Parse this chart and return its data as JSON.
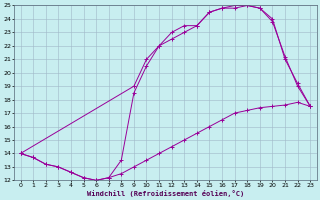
{
  "xlabel": "Windchill (Refroidissement éolien,°C)",
  "background_color": "#c8eef0",
  "grid_color": "#a0b8c8",
  "line_color": "#990099",
  "xlim": [
    -0.5,
    23.5
  ],
  "ylim": [
    12,
    25
  ],
  "xticks": [
    0,
    1,
    2,
    3,
    4,
    5,
    6,
    7,
    8,
    9,
    10,
    11,
    12,
    13,
    14,
    15,
    16,
    17,
    18,
    19,
    20,
    21,
    22,
    23
  ],
  "yticks": [
    12,
    13,
    14,
    15,
    16,
    17,
    18,
    19,
    20,
    21,
    22,
    23,
    24,
    25
  ],
  "line1_x": [
    0,
    1,
    2,
    3,
    4,
    5,
    6,
    7,
    8,
    9,
    10,
    11,
    12,
    13,
    14,
    15,
    16,
    17,
    18,
    19,
    20,
    21,
    22,
    23
  ],
  "line1_y": [
    14.0,
    13.7,
    13.2,
    13.0,
    12.6,
    12.2,
    12.0,
    12.2,
    12.5,
    13.0,
    13.5,
    14.0,
    14.5,
    15.0,
    15.5,
    16.0,
    16.5,
    17.0,
    17.2,
    17.4,
    17.5,
    17.6,
    17.8,
    17.5
  ],
  "line2_x": [
    0,
    9,
    10,
    11,
    12,
    13,
    14,
    15,
    16,
    17,
    18,
    19,
    20,
    21,
    22,
    23
  ],
  "line2_y": [
    14.0,
    19.0,
    21.0,
    22.0,
    23.0,
    23.5,
    23.5,
    24.5,
    24.8,
    25.0,
    25.0,
    24.8,
    24.0,
    21.0,
    19.2,
    17.5
  ],
  "line3_x": [
    0,
    1,
    2,
    3,
    4,
    5,
    6,
    7,
    8,
    9,
    10,
    11,
    12,
    13,
    14,
    15,
    16,
    17,
    18,
    19,
    20,
    21,
    22,
    23
  ],
  "line3_y": [
    14.0,
    13.7,
    13.2,
    13.0,
    12.6,
    12.2,
    12.0,
    12.2,
    13.5,
    18.5,
    20.5,
    22.0,
    22.5,
    23.0,
    23.5,
    24.5,
    24.8,
    24.8,
    25.0,
    24.8,
    23.8,
    21.2,
    19.0,
    17.5
  ]
}
